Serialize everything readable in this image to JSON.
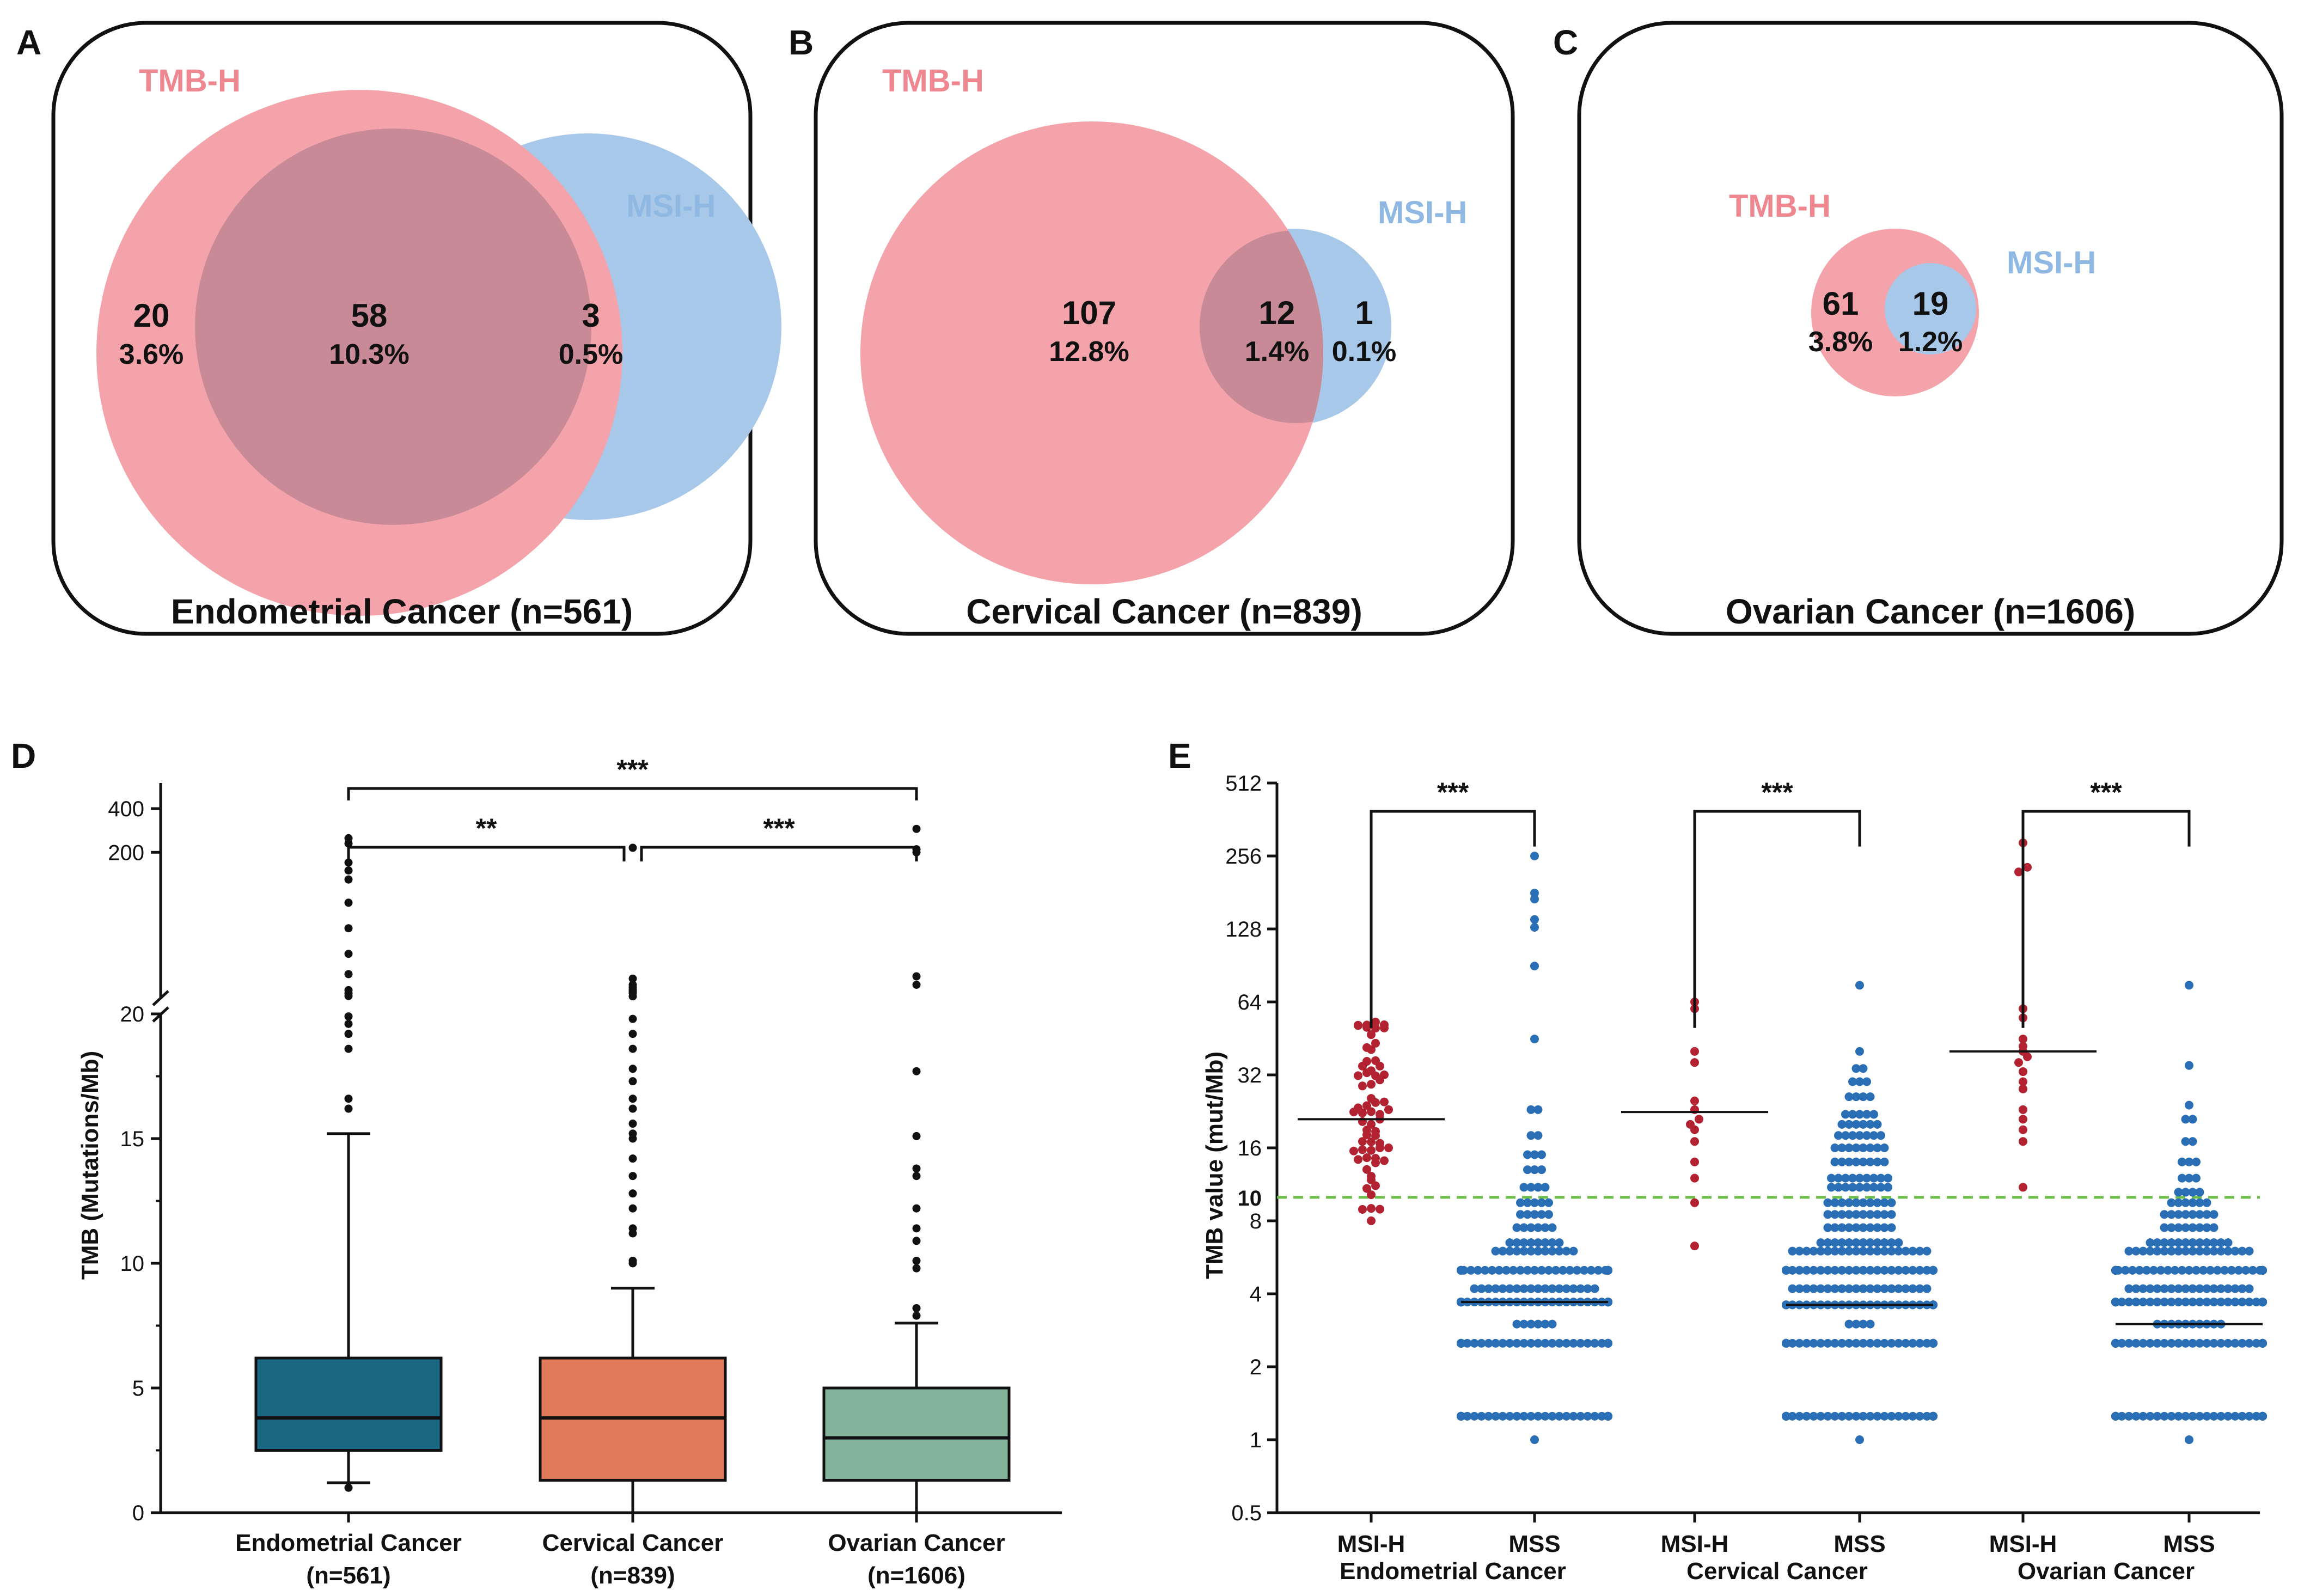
{
  "colors": {
    "tmb": "#f4a3aa",
    "tmb_text": "#ef8790",
    "msi": "#a7c8e8",
    "msi_text": "#8fb8e3",
    "overlap": "#c98a97",
    "endometrial": "#196783",
    "cervical": "#e07a5a",
    "ovarian": "#83b39b",
    "msih_dots": "#b22230",
    "mss_dots": "#2a6fb5",
    "threshold": "#6cc04a"
  },
  "panels": {
    "A": "A",
    "B": "B",
    "C": "C",
    "D": "D",
    "E": "E"
  },
  "venn": [
    {
      "panel": "A",
      "title": "Endometrial Cancer (n=561)",
      "tmb_label": "TMB-H",
      "msi_label": "MSI-H",
      "tmb_only": {
        "count": "20",
        "pct": "3.6%"
      },
      "both": {
        "count": "58",
        "pct": "10.3%"
      },
      "msi_only": {
        "count": "3",
        "pct": "0.5%"
      }
    },
    {
      "panel": "B",
      "title": "Cervical Cancer (n=839)",
      "tmb_label": "TMB-H",
      "msi_label": "MSI-H",
      "tmb_only": {
        "count": "107",
        "pct": "12.8%"
      },
      "both": {
        "count": "12",
        "pct": "1.4%"
      },
      "msi_only": {
        "count": "1",
        "pct": "0.1%"
      }
    },
    {
      "panel": "C",
      "title": "Ovarian Cancer (n=1606)",
      "tmb_label": "TMB-H",
      "msi_label": "MSI-H",
      "tmb_only": {
        "count": "61",
        "pct": "3.8%"
      },
      "both": {
        "count": "19",
        "pct": "1.2%"
      }
    }
  ],
  "chart_data": [
    {
      "panel": "D",
      "type": "box",
      "ylabel": "TMB (Mutations/Mb)",
      "y_axis_break": "between 20 and the upper log segment",
      "lower_ticks": [
        0,
        5,
        10,
        15,
        20
      ],
      "upper_ticks": [
        200,
        400
      ],
      "categories": [
        "Endometrial Cancer\n(n=561)",
        "Cervical Cancer\n(n=839)",
        "Ovarian Cancer\n(n=1606)"
      ],
      "boxes": [
        {
          "name": "Endometrial Cancer",
          "n_label": "(n=561)",
          "whisker_low": 1.2,
          "q1": 2.5,
          "median": 3.8,
          "q3": 6.2,
          "whisker_high": 15.2,
          "outliers": [
            16.2,
            16.6,
            18.6,
            19.2,
            19.6,
            19.9,
            20.5,
            21.4,
            22.5,
            29,
            40,
            60,
            90,
            130,
            150,
            170,
            230,
            250,
            1.0
          ]
        },
        {
          "name": "Cervical Cancer",
          "n_label": "(n=839)",
          "whisker_low": 0,
          "q1": 1.3,
          "median": 3.8,
          "q3": 6.2,
          "whisker_high": 9.0,
          "outliers": [
            10.0,
            10.1,
            11.2,
            11.4,
            12.2,
            12.8,
            13.5,
            14.2,
            15.0,
            15.2,
            15.6,
            16.2,
            16.6,
            17.3,
            17.8,
            18.6,
            19.2,
            19.8,
            20.4,
            21.5,
            22.0,
            22.7,
            23.5,
            24.5,
            27,
            215
          ]
        },
        {
          "name": "Ovarian Cancer",
          "n_label": "(n=1606)",
          "whisker_low": 0,
          "q1": 1.3,
          "median": 3.0,
          "q3": 5.0,
          "whisker_high": 7.6,
          "outliers": [
            7.9,
            8.2,
            9.8,
            10.1,
            10.9,
            11.4,
            12.2,
            13.5,
            13.8,
            15.1,
            17.7,
            24.5,
            28,
            200,
            210,
            290
          ]
        }
      ],
      "comparisons": [
        {
          "from": 0,
          "to": 2,
          "label": "***"
        },
        {
          "from": 0,
          "to": 1,
          "label": "**"
        },
        {
          "from": 1,
          "to": 2,
          "label": "***"
        }
      ]
    },
    {
      "panel": "E",
      "type": "scatter",
      "ylabel": "TMB value (mut/Mb)",
      "yscale": "log2",
      "ylim": [
        0.5,
        512
      ],
      "yticks": [
        "0.5",
        "1",
        "2",
        "4",
        "8",
        "16",
        "32",
        "64",
        "128",
        "256",
        "512"
      ],
      "threshold": {
        "value": 10,
        "label": "10"
      },
      "x_labels": [
        "MSI-H",
        "MSS",
        "MSI-H",
        "MSS",
        "MSI-H",
        "MSS"
      ],
      "group_labels": [
        "Endometrial Cancer",
        "Cervical Cancer",
        "Ovarian Cancer"
      ],
      "series": [
        {
          "name": "Endometrial MSI-H",
          "median": 21,
          "n": 61
        },
        {
          "name": "Endometrial MSS",
          "median": 3.7,
          "n": 500
        },
        {
          "name": "Cervical MSI-H",
          "median": 22.5,
          "n": 13
        },
        {
          "name": "Cervical MSS",
          "median": 3.6,
          "n": 826
        },
        {
          "name": "Ovarian MSI-H",
          "median": 40,
          "n": 19
        },
        {
          "name": "Ovarian MSS",
          "median": 3.0,
          "n": 1587
        }
      ],
      "comparisons": [
        {
          "from": 0,
          "to": 1,
          "label": "***"
        },
        {
          "from": 2,
          "to": 3,
          "label": "***"
        },
        {
          "from": 4,
          "to": 5,
          "label": "***"
        }
      ]
    }
  ]
}
